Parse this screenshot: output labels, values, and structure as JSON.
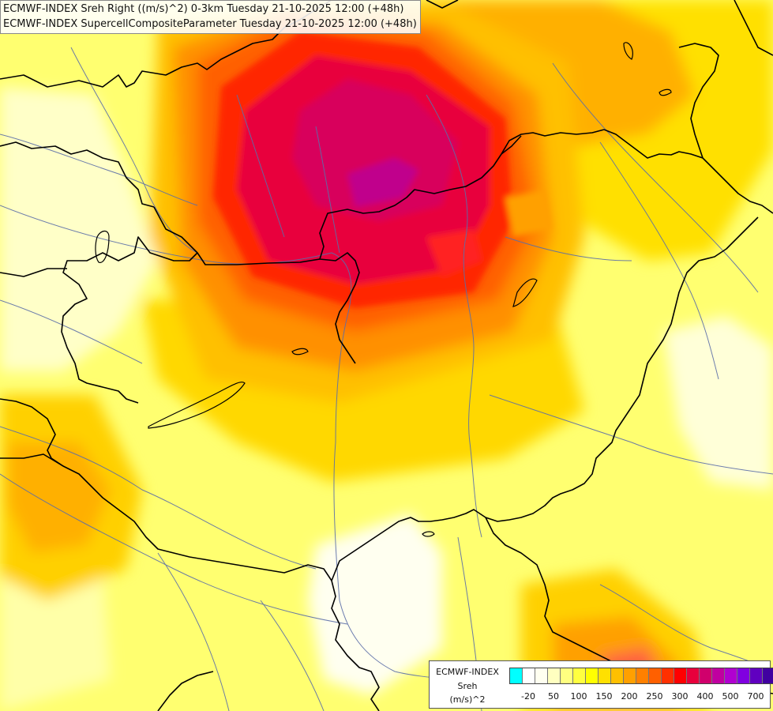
{
  "titles": {
    "line1": "ECMWF-INDEX Sreh Right ((m/s)^2) 0-3km Tuesday 21-10-2025 12:00 (+48h)",
    "line2": "ECMWF-INDEX SupercellCompositeParameter Tuesday 21-10-2025 12:00 (+48h)"
  },
  "legend": {
    "source": "ECMWF-INDEX",
    "variable": "Sreh",
    "unit": "(m/s)^2",
    "colors": [
      "#00ffff",
      "#ffffff",
      "#fffff0",
      "#ffffc0",
      "#ffff80",
      "#ffff40",
      "#ffff00",
      "#ffe000",
      "#ffc000",
      "#ffa000",
      "#ff8000",
      "#ff6000",
      "#ff3000",
      "#ff0000",
      "#e8003c",
      "#d0006c",
      "#c000a0",
      "#b000d0",
      "#8000e0",
      "#6000c0",
      "#4000a0",
      "#200080",
      "#000070"
    ],
    "ticks": [
      "-20",
      "50",
      "100",
      "150",
      "200",
      "250",
      "300",
      "400",
      "500",
      "700"
    ]
  }
}
